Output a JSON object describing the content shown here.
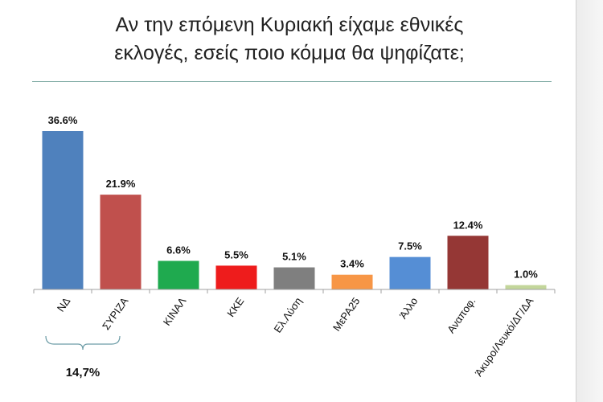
{
  "chart_data": {
    "type": "bar",
    "title_lines": [
      "Αν την επόμενη Κυριακή είχαμε εθνικές",
      "εκλογές, εσείς ποιο κόμμα θα ψηφίζατε;"
    ],
    "categories": [
      "ΝΔ",
      "ΣΥΡΙΖΑ",
      "ΚΙΝΑΛ",
      "ΚΚΕ",
      "Ελ.Λύση",
      "ΜεΡΑ25",
      "Άλλο",
      "Αναποφ.",
      "Άκυρο/Λευκό/ΔΓ/ΔΑ"
    ],
    "values": [
      36.6,
      21.9,
      6.6,
      5.5,
      5.1,
      3.4,
      7.5,
      12.4,
      1.0
    ],
    "value_labels": [
      "36.6%",
      "21.9%",
      "6.6%",
      "5.5%",
      "5.1%",
      "3.4%",
      "7.5%",
      "12.4%",
      "1.0%"
    ],
    "colors": [
      "#4f81bd",
      "#c0504d",
      "#1faa4f",
      "#ee1c1c",
      "#7f7f7f",
      "#f79646",
      "#558ed5",
      "#953735",
      "#c3d69b"
    ],
    "ylim": [
      0,
      36.6
    ],
    "grid": false,
    "legend": "none",
    "annotation": {
      "label": "14,7%",
      "spans": [
        "ΝΔ",
        "ΣΥΡΙΖΑ"
      ]
    }
  }
}
